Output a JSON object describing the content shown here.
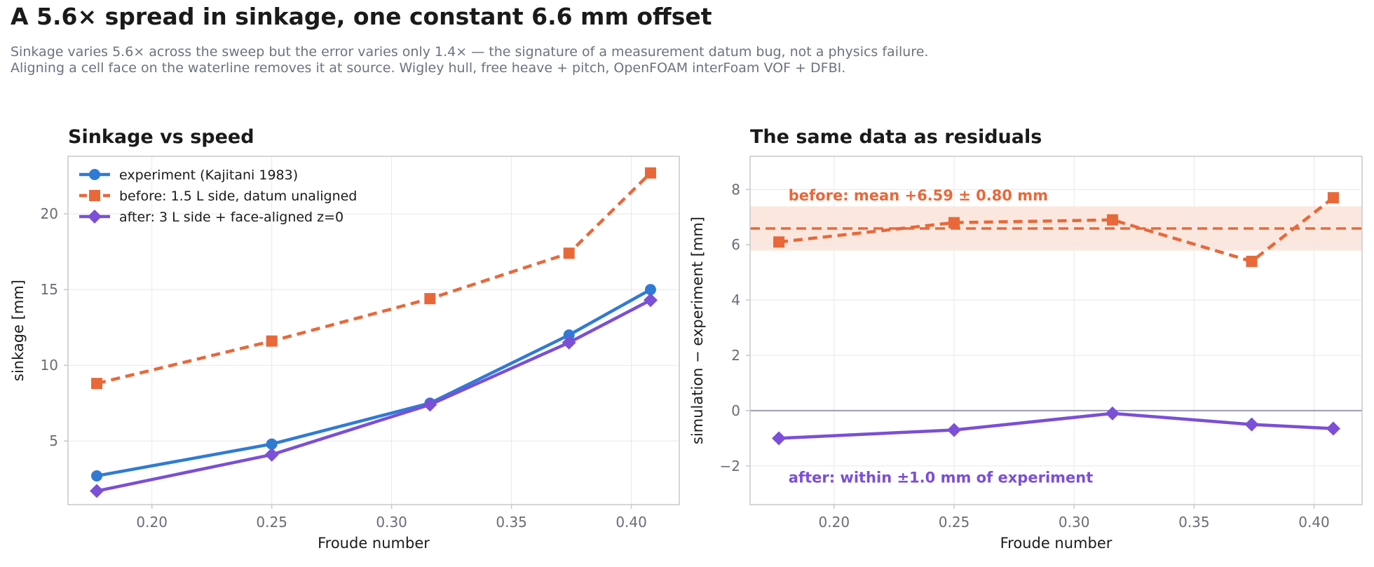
{
  "page": {
    "title": "A 5.6× spread in sinkage, one constant 6.6 mm offset",
    "subtitle_lines": [
      "Sinkage varies 5.6× across the sweep but the error varies only 1.4× — the signature of a measurement datum bug, not a physics failure.",
      "Aligning a cell face on the waterline removes it at source. Wigley hull, free heave + pitch, OpenFOAM interFoam VOF + DFBI."
    ]
  },
  "colors": {
    "experiment": "#2f7bd4",
    "before": "#e8683a",
    "after": "#7b4fd6",
    "band": "#fbe3d8",
    "zero_line": "#9a9ab0",
    "grid": "#e8e8ec",
    "axis": "#c8c8cc",
    "tick_text": "#6b6b78"
  },
  "chart_data": [
    {
      "type": "line",
      "title": "Sinkage vs speed",
      "xlabel": "Froude number",
      "ylabel": "sinkage  [mm]",
      "xlim": [
        0.165,
        0.42
      ],
      "ylim": [
        0.8,
        23.8
      ],
      "xticks": [
        0.2,
        0.25,
        0.3,
        0.35,
        0.4
      ],
      "xtick_labels": [
        "0.20",
        "0.25",
        "0.30",
        "0.35",
        "0.40"
      ],
      "yticks": [
        5,
        10,
        15,
        20
      ],
      "ytick_labels": [
        "5",
        "10",
        "15",
        "20"
      ],
      "grid": true,
      "legend": "top-left",
      "x": [
        0.177,
        0.25,
        0.316,
        0.374,
        0.408
      ],
      "series": [
        {
          "name": "experiment (Kajitani 1983)",
          "color_key": "experiment",
          "marker": "circle",
          "dashed": false,
          "values": [
            2.7,
            4.8,
            7.5,
            12.0,
            15.0
          ]
        },
        {
          "name": "before: 1.5 L side, datum unaligned",
          "color_key": "before",
          "marker": "square",
          "dashed": true,
          "values": [
            8.8,
            11.6,
            14.4,
            17.4,
            22.7
          ]
        },
        {
          "name": "after: 3 L side + face-aligned z=0",
          "color_key": "after",
          "marker": "diamond",
          "dashed": false,
          "values": [
            1.7,
            4.1,
            7.4,
            11.5,
            14.3
          ]
        }
      ]
    },
    {
      "type": "line",
      "title": "The same data as residuals",
      "xlabel": "Froude number",
      "ylabel": "simulation − experiment  [mm]",
      "xlim": [
        0.165,
        0.42
      ],
      "ylim": [
        -3.4,
        9.2
      ],
      "xticks": [
        0.2,
        0.25,
        0.3,
        0.35,
        0.4
      ],
      "xtick_labels": [
        "0.20",
        "0.25",
        "0.30",
        "0.35",
        "0.40"
      ],
      "yticks": [
        -2,
        0,
        2,
        4,
        6,
        8
      ],
      "ytick_labels": [
        "−2",
        "0",
        "2",
        "4",
        "6",
        "8"
      ],
      "grid": true,
      "x": [
        0.177,
        0.25,
        0.316,
        0.374,
        0.408
      ],
      "series": [
        {
          "name": "before",
          "color_key": "before",
          "marker": "square",
          "dashed": true,
          "values": [
            6.1,
            6.8,
            6.9,
            5.4,
            7.7
          ]
        },
        {
          "name": "after",
          "color_key": "after",
          "marker": "diamond",
          "dashed": false,
          "values": [
            -1.0,
            -0.7,
            -0.1,
            -0.5,
            -0.65
          ]
        }
      ],
      "reference_lines": [
        {
          "value": 0,
          "color_key": "zero_line",
          "dashed": false
        },
        {
          "value": 6.59,
          "color_key": "before",
          "dashed": true
        }
      ],
      "band": {
        "y_min": 5.79,
        "y_max": 7.39,
        "color_key": "band"
      },
      "annotations": [
        {
          "text": "before: mean +6.59 ± 0.80 mm",
          "color_key": "before",
          "x": 0.181,
          "y": 7.6
        },
        {
          "text": "after: within ±1.0 mm of experiment",
          "color_key": "after",
          "x": 0.181,
          "y": -2.6
        }
      ]
    }
  ]
}
